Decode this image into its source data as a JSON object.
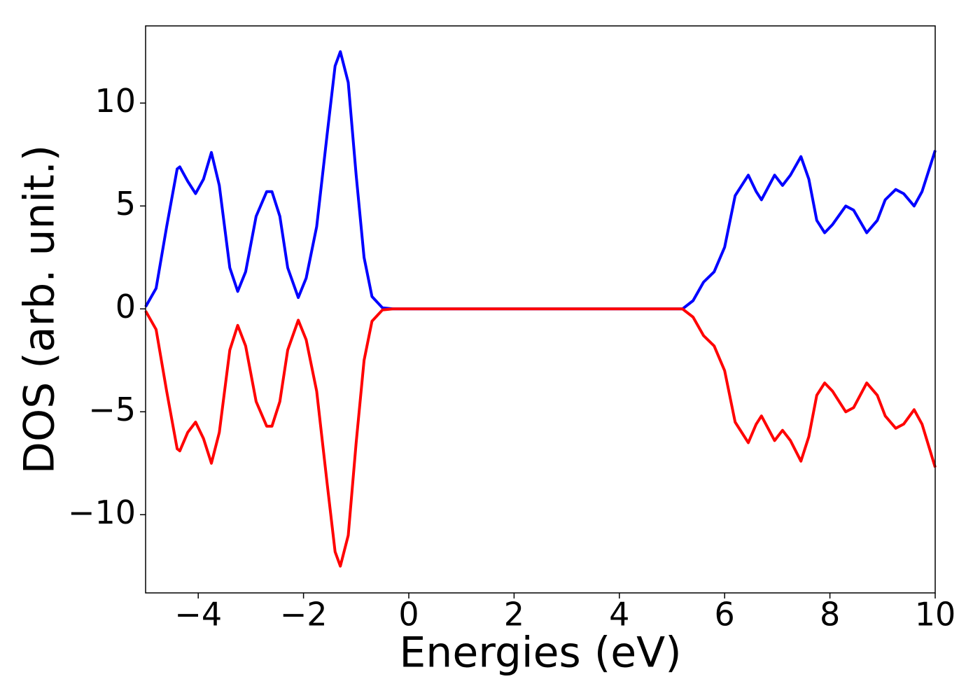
{
  "chart_data": {
    "type": "line",
    "xlabel": "Energies (eV)",
    "ylabel": "DOS (arb. unit.)",
    "x": [
      -5.0,
      -4.8,
      -4.6,
      -4.4,
      -4.35,
      -4.2,
      -4.05,
      -3.9,
      -3.75,
      -3.6,
      -3.4,
      -3.25,
      -3.1,
      -2.9,
      -2.7,
      -2.6,
      -2.45,
      -2.3,
      -2.1,
      -1.95,
      -1.75,
      -1.55,
      -1.4,
      -1.3,
      -1.15,
      -1.0,
      -0.85,
      -0.7,
      -0.5,
      -0.3,
      5.2,
      5.4,
      5.6,
      5.8,
      6.0,
      6.2,
      6.45,
      6.6,
      6.7,
      6.95,
      7.1,
      7.25,
      7.45,
      7.6,
      7.75,
      7.9,
      8.05,
      8.3,
      8.45,
      8.7,
      8.9,
      9.05,
      9.25,
      9.4,
      9.6,
      9.75,
      10.0
    ],
    "series": [
      {
        "color": "#0000ff",
        "values": [
          0.1,
          1.0,
          4.0,
          6.8,
          6.9,
          6.2,
          5.6,
          6.3,
          7.6,
          6.0,
          2.0,
          0.85,
          1.8,
          4.5,
          5.7,
          5.7,
          4.5,
          2.0,
          0.55,
          1.5,
          4.0,
          8.5,
          11.8,
          12.5,
          11.0,
          6.5,
          2.5,
          0.6,
          0.05,
          0,
          0,
          0.4,
          1.3,
          1.8,
          3.0,
          5.5,
          6.5,
          5.7,
          5.3,
          6.5,
          6.0,
          6.5,
          7.4,
          6.3,
          4.3,
          3.7,
          4.1,
          5.0,
          4.8,
          3.7,
          4.3,
          5.3,
          5.8,
          5.6,
          5.0,
          5.7,
          7.7
        ]
      },
      {
        "color": "#ff0000",
        "values": [
          -0.1,
          -1.0,
          -4.0,
          -6.8,
          -6.9,
          -6.0,
          -5.5,
          -6.3,
          -7.5,
          -6.0,
          -2.0,
          -0.8,
          -1.8,
          -4.5,
          -5.7,
          -5.7,
          -4.5,
          -2.0,
          -0.55,
          -1.5,
          -4.0,
          -8.5,
          -11.8,
          -12.5,
          -11.0,
          -6.5,
          -2.5,
          -0.6,
          -0.05,
          0,
          0,
          -0.4,
          -1.3,
          -1.8,
          -3.0,
          -5.5,
          -6.5,
          -5.6,
          -5.2,
          -6.4,
          -5.9,
          -6.4,
          -7.4,
          -6.2,
          -4.2,
          -3.6,
          -4.0,
          -5.0,
          -4.8,
          -3.6,
          -4.2,
          -5.2,
          -5.8,
          -5.6,
          -4.9,
          -5.6,
          -7.7
        ]
      }
    ],
    "xlim": [
      -5,
      10
    ],
    "ylim": [
      -13.8,
      13.75
    ],
    "xticks": [
      {
        "value": -4,
        "label": "−4"
      },
      {
        "value": -2,
        "label": "−2"
      },
      0,
      2,
      4,
      6,
      8,
      10
    ],
    "yticks": [
      {
        "value": -10,
        "label": "−10"
      },
      {
        "value": -5,
        "label": "−5"
      },
      0,
      5,
      10
    ]
  }
}
